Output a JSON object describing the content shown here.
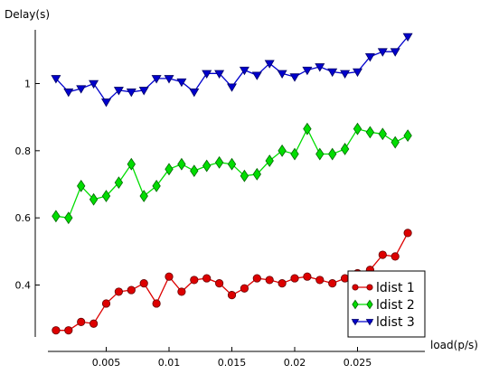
{
  "chart_data": {
    "type": "line",
    "title": "",
    "xlabel": "load(p/s)",
    "ylabel": "Delay(s)",
    "xlim": [
      0,
      0.03
    ],
    "ylim": [
      0.33,
      1.17
    ],
    "x_ticks": [
      0.005,
      0.01,
      0.015,
      0.02,
      0.025
    ],
    "x_tick_labels": [
      "0.005",
      "0.01",
      "0.015",
      "0.02",
      "0.025"
    ],
    "y_ticks": [
      0.4,
      0.6,
      0.8,
      1.0
    ],
    "y_tick_labels": [
      "0.4",
      "0.6",
      "0.8",
      "1"
    ],
    "grid": false,
    "legend_position": "bottom-right",
    "x": [
      0.001,
      0.002,
      0.003,
      0.004,
      0.005,
      0.006,
      0.007,
      0.008,
      0.009,
      0.01,
      0.011,
      0.012,
      0.013,
      0.014,
      0.015,
      0.016,
      0.017,
      0.018,
      0.019,
      0.02,
      0.021,
      0.022,
      0.023,
      0.024,
      0.025,
      0.026,
      0.027,
      0.028,
      0.029
    ],
    "series": [
      {
        "name": "ldist 1",
        "color": "#dd0000",
        "marker": "circle",
        "values": [
          0.265,
          0.265,
          0.29,
          0.285,
          0.345,
          0.38,
          0.385,
          0.405,
          0.345,
          0.425,
          0.38,
          0.415,
          0.42,
          0.405,
          0.37,
          0.39,
          0.42,
          0.415,
          0.405,
          0.42,
          0.425,
          0.415,
          0.405,
          0.42,
          0.435,
          0.445,
          0.49,
          0.485,
          0.555
        ]
      },
      {
        "name": "ldist 2",
        "color": "#00dd00",
        "marker": "diamond",
        "values": [
          0.605,
          0.6,
          0.695,
          0.655,
          0.665,
          0.705,
          0.76,
          0.665,
          0.695,
          0.745,
          0.76,
          0.74,
          0.755,
          0.765,
          0.76,
          0.725,
          0.73,
          0.77,
          0.8,
          0.79,
          0.865,
          0.79,
          0.79,
          0.805,
          0.865,
          0.855,
          0.85,
          0.825,
          0.845
        ]
      },
      {
        "name": "ldist 3",
        "color": "#0000cc",
        "marker": "triangle-down",
        "values": [
          1.015,
          0.975,
          0.985,
          1.0,
          0.945,
          0.98,
          0.975,
          0.98,
          1.015,
          1.015,
          1.005,
          0.975,
          1.03,
          1.03,
          0.99,
          1.04,
          1.025,
          1.06,
          1.03,
          1.02,
          1.04,
          1.05,
          1.035,
          1.03,
          1.035,
          1.08,
          1.095,
          1.095,
          1.14
        ]
      }
    ]
  }
}
